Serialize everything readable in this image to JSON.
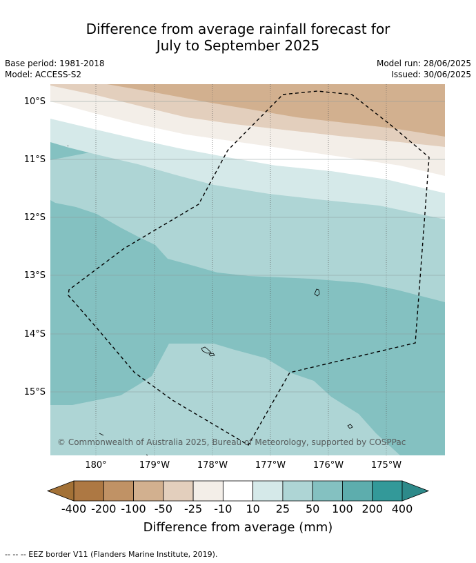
{
  "title_line1": "Difference from average rainfall forecast for",
  "title_line2": "July to September 2025",
  "base_period": "Base period: 1981-2018",
  "model": "Model: ACCESS-S2",
  "model_run": "Model run: 28/06/2025",
  "issued": "Issued: 30/06/2025",
  "lat_labels": [
    "10°S",
    "11°S",
    "12°S",
    "13°S",
    "14°S",
    "15°S"
  ],
  "lon_labels": [
    "180°",
    "179°W",
    "178°W",
    "177°W",
    "176°W",
    "175°W"
  ],
  "copyright": "© Commonwealth of Australia 2025, Bureau of Meteorology, supported by COSPPac",
  "colorbar": {
    "title": "Difference from average (mm)",
    "labels": [
      "-400",
      "-200",
      "-100",
      "-50",
      "-25",
      "-10",
      "10",
      "25",
      "50",
      "100",
      "200",
      "400"
    ],
    "colors": [
      "#ad7843",
      "#c09265",
      "#d2b08f",
      "#e3cfbd",
      "#f3eee8",
      "#ffffff",
      "#d5e9e9",
      "#aed5d5",
      "#84c1c1",
      "#5dadad",
      "#339999"
    ],
    "extend_low_color": "#a37136",
    "extend_high_color": "#2d8a8a"
  },
  "footnote": "--  --  -- EEZ border V11 (Flanders Marine Institute, 2019)."
}
